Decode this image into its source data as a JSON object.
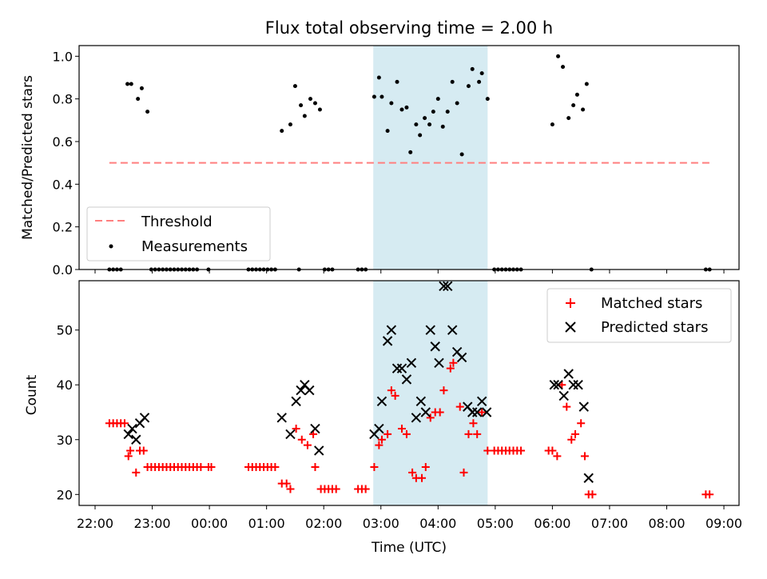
{
  "title": "Flux total observing time = 2.00 h",
  "time_axis_label": "Time (UTC)",
  "time_ticks": [
    "22:00",
    "23:00",
    "00:00",
    "01:00",
    "02:00",
    "03:00",
    "04:00",
    "05:00",
    "06:00",
    "07:00",
    "08:00",
    "09:00"
  ],
  "colors": {
    "threshold": "#ff7f7f",
    "measurements": "#000000",
    "matched": "#ff0000",
    "predicted": "#000000",
    "observing_band": "#add8e6"
  },
  "chart_data": [
    {
      "type": "scatter",
      "ylabel": "Matched/Predicted stars",
      "ylim": [
        0,
        1.05
      ],
      "yticks": [
        "0.0",
        "0.2",
        "0.4",
        "0.6",
        "0.8",
        "1.0"
      ],
      "grid": false,
      "legend_position": "lower-left",
      "highlighted_span": {
        "x": [
          "02:52",
          "04:52"
        ]
      },
      "threshold": {
        "name": "Threshold",
        "value": 0.5,
        "x": [
          "22:15",
          "08:45"
        ]
      },
      "series": [
        {
          "name": "Measurements",
          "points": [
            [
              "22:15",
              0
            ],
            [
              "22:19",
              0
            ],
            [
              "22:23",
              0
            ],
            [
              "22:27",
              0
            ],
            [
              "22:34",
              0.87
            ],
            [
              "22:38",
              0.87
            ],
            [
              "22:45",
              0.8
            ],
            [
              "22:49",
              0.85
            ],
            [
              "22:55",
              0.74
            ],
            [
              "22:59",
              0
            ],
            [
              "23:03",
              0
            ],
            [
              "23:07",
              0
            ],
            [
              "23:11",
              0
            ],
            [
              "23:15",
              0
            ],
            [
              "23:19",
              0
            ],
            [
              "23:23",
              0
            ],
            [
              "23:27",
              0
            ],
            [
              "23:31",
              0
            ],
            [
              "23:35",
              0
            ],
            [
              "23:39",
              0
            ],
            [
              "23:43",
              0
            ],
            [
              "23:47",
              0
            ],
            [
              "23:59",
              0
            ],
            [
              "00:41",
              0
            ],
            [
              "00:45",
              0
            ],
            [
              "00:49",
              0
            ],
            [
              "00:53",
              0
            ],
            [
              "00:57",
              0
            ],
            [
              "01:01",
              0
            ],
            [
              "01:05",
              0
            ],
            [
              "01:09",
              0
            ],
            [
              "01:16",
              0.65
            ],
            [
              "01:25",
              0.68
            ],
            [
              "01:30",
              0.86
            ],
            [
              "01:34",
              0
            ],
            [
              "01:36",
              0.77
            ],
            [
              "01:40",
              0.72
            ],
            [
              "01:46",
              0.8
            ],
            [
              "01:51",
              0.78
            ],
            [
              "01:56",
              0.75
            ],
            [
              "02:01",
              0
            ],
            [
              "02:05",
              0
            ],
            [
              "02:09",
              0
            ],
            [
              "02:36",
              0
            ],
            [
              "02:40",
              0
            ],
            [
              "02:44",
              0
            ],
            [
              "02:53",
              0.81
            ],
            [
              "02:58",
              0.9
            ],
            [
              "03:01",
              0.81
            ],
            [
              "03:07",
              0.65
            ],
            [
              "03:11",
              0.78
            ],
            [
              "03:17",
              0.88
            ],
            [
              "03:22",
              0.75
            ],
            [
              "03:27",
              0.76
            ],
            [
              "03:31",
              0.55
            ],
            [
              "03:37",
              0.68
            ],
            [
              "03:41",
              0.63
            ],
            [
              "03:46",
              0.71
            ],
            [
              "03:51",
              0.68
            ],
            [
              "03:55",
              0.74
            ],
            [
              "04:00",
              0.8
            ],
            [
              "04:05",
              0.67
            ],
            [
              "04:10",
              0.74
            ],
            [
              "04:15",
              0.88
            ],
            [
              "04:20",
              0.78
            ],
            [
              "04:25",
              0.54
            ],
            [
              "04:32",
              0.86
            ],
            [
              "04:36",
              0.94
            ],
            [
              "04:43",
              0.88
            ],
            [
              "04:46",
              0.92
            ],
            [
              "04:52",
              0.8
            ],
            [
              "04:59",
              0
            ],
            [
              "05:03",
              0
            ],
            [
              "05:07",
              0
            ],
            [
              "05:11",
              0
            ],
            [
              "05:15",
              0
            ],
            [
              "05:19",
              0
            ],
            [
              "05:23",
              0
            ],
            [
              "05:27",
              0
            ],
            [
              "06:00",
              0.68
            ],
            [
              "06:06",
              1.0
            ],
            [
              "06:11",
              0.95
            ],
            [
              "06:17",
              0.71
            ],
            [
              "06:22",
              0.77
            ],
            [
              "06:26",
              0.82
            ],
            [
              "06:32",
              0.75
            ],
            [
              "06:36",
              0.87
            ],
            [
              "06:41",
              0
            ],
            [
              "08:41",
              0
            ],
            [
              "08:45",
              0
            ]
          ]
        }
      ]
    },
    {
      "type": "scatter",
      "ylabel": "Count",
      "xlabel": "Time (UTC)",
      "ylim": [
        18,
        59
      ],
      "yticks": [
        "20",
        "30",
        "40",
        "50"
      ],
      "grid": false,
      "legend_position": "top-right",
      "highlighted_span": {
        "x": [
          "02:52",
          "04:52"
        ]
      },
      "series": [
        {
          "name": "Matched stars",
          "marker": "+",
          "points": [
            [
              "22:15",
              33
            ],
            [
              "22:19",
              33
            ],
            [
              "22:23",
              33
            ],
            [
              "22:27",
              33
            ],
            [
              "22:31",
              33
            ],
            [
              "22:35",
              27
            ],
            [
              "22:37",
              28
            ],
            [
              "22:43",
              24
            ],
            [
              "22:47",
              28
            ],
            [
              "22:51",
              28
            ],
            [
              "22:55",
              25
            ],
            [
              "22:59",
              25
            ],
            [
              "23:03",
              25
            ],
            [
              "23:07",
              25
            ],
            [
              "23:11",
              25
            ],
            [
              "23:15",
              25
            ],
            [
              "23:19",
              25
            ],
            [
              "23:23",
              25
            ],
            [
              "23:27",
              25
            ],
            [
              "23:31",
              25
            ],
            [
              "23:35",
              25
            ],
            [
              "23:39",
              25
            ],
            [
              "23:43",
              25
            ],
            [
              "23:47",
              25
            ],
            [
              "23:51",
              25
            ],
            [
              "23:59",
              25
            ],
            [
              "00:02",
              25
            ],
            [
              "00:41",
              25
            ],
            [
              "00:45",
              25
            ],
            [
              "00:49",
              25
            ],
            [
              "00:53",
              25
            ],
            [
              "00:57",
              25
            ],
            [
              "01:01",
              25
            ],
            [
              "01:05",
              25
            ],
            [
              "01:09",
              25
            ],
            [
              "01:16",
              22
            ],
            [
              "01:21",
              22
            ],
            [
              "01:25",
              21
            ],
            [
              "01:31",
              32
            ],
            [
              "01:37",
              30
            ],
            [
              "01:43",
              29
            ],
            [
              "01:49",
              31
            ],
            [
              "01:51",
              25
            ],
            [
              "01:57",
              21
            ],
            [
              "02:01",
              21
            ],
            [
              "02:05",
              21
            ],
            [
              "02:09",
              21
            ],
            [
              "02:13",
              21
            ],
            [
              "02:36",
              21
            ],
            [
              "02:40",
              21
            ],
            [
              "02:44",
              21
            ],
            [
              "02:53",
              25
            ],
            [
              "02:58",
              29
            ],
            [
              "03:01",
              30
            ],
            [
              "03:07",
              31
            ],
            [
              "03:11",
              39
            ],
            [
              "03:15",
              38
            ],
            [
              "03:22",
              32
            ],
            [
              "03:27",
              31
            ],
            [
              "03:33",
              24
            ],
            [
              "03:37",
              23
            ],
            [
              "03:43",
              23
            ],
            [
              "03:47",
              25
            ],
            [
              "03:52",
              34
            ],
            [
              "03:57",
              35
            ],
            [
              "04:02",
              35
            ],
            [
              "04:06",
              39
            ],
            [
              "04:13",
              43
            ],
            [
              "04:16",
              44
            ],
            [
              "04:23",
              36
            ],
            [
              "04:27",
              24
            ],
            [
              "04:32",
              31
            ],
            [
              "04:37",
              33
            ],
            [
              "04:41",
              31
            ],
            [
              "04:46",
              35
            ],
            [
              "04:52",
              28
            ],
            [
              "04:59",
              28
            ],
            [
              "05:03",
              28
            ],
            [
              "05:07",
              28
            ],
            [
              "05:11",
              28
            ],
            [
              "05:15",
              28
            ],
            [
              "05:19",
              28
            ],
            [
              "05:23",
              28
            ],
            [
              "05:27",
              28
            ],
            [
              "05:56",
              28
            ],
            [
              "06:00",
              28
            ],
            [
              "06:05",
              27
            ],
            [
              "06:10",
              40
            ],
            [
              "06:15",
              36
            ],
            [
              "06:20",
              30
            ],
            [
              "06:24",
              31
            ],
            [
              "06:30",
              33
            ],
            [
              "06:34",
              27
            ],
            [
              "06:38",
              20
            ],
            [
              "06:42",
              20
            ],
            [
              "08:41",
              20
            ],
            [
              "08:45",
              20
            ]
          ]
        },
        {
          "name": "Predicted stars",
          "marker": "x",
          "points": [
            [
              "22:35",
              31
            ],
            [
              "22:39",
              32
            ],
            [
              "22:43",
              30
            ],
            [
              "22:47",
              33
            ],
            [
              "22:52",
              34
            ],
            [
              "01:16",
              34
            ],
            [
              "01:25",
              31
            ],
            [
              "01:31",
              37
            ],
            [
              "01:36",
              39
            ],
            [
              "01:40",
              40
            ],
            [
              "01:45",
              39
            ],
            [
              "01:51",
              32
            ],
            [
              "01:55",
              28
            ],
            [
              "02:53",
              31
            ],
            [
              "02:58",
              32
            ],
            [
              "03:01",
              37
            ],
            [
              "03:07",
              48
            ],
            [
              "03:11",
              50
            ],
            [
              "03:17",
              43
            ],
            [
              "03:22",
              43
            ],
            [
              "03:27",
              41
            ],
            [
              "03:32",
              44
            ],
            [
              "03:37",
              34
            ],
            [
              "03:42",
              37
            ],
            [
              "03:47",
              35
            ],
            [
              "03:52",
              50
            ],
            [
              "03:57",
              47
            ],
            [
              "04:01",
              44
            ],
            [
              "04:06",
              58
            ],
            [
              "04:10",
              58
            ],
            [
              "04:15",
              50
            ],
            [
              "04:20",
              46
            ],
            [
              "04:25",
              45
            ],
            [
              "04:31",
              36
            ],
            [
              "04:36",
              35
            ],
            [
              "04:41",
              35
            ],
            [
              "04:46",
              37
            ],
            [
              "04:51",
              35
            ],
            [
              "06:02",
              40
            ],
            [
              "06:06",
              40
            ],
            [
              "06:12",
              38
            ],
            [
              "06:17",
              42
            ],
            [
              "06:22",
              40
            ],
            [
              "06:27",
              40
            ],
            [
              "06:33",
              36
            ],
            [
              "06:38",
              23
            ]
          ]
        }
      ]
    }
  ]
}
